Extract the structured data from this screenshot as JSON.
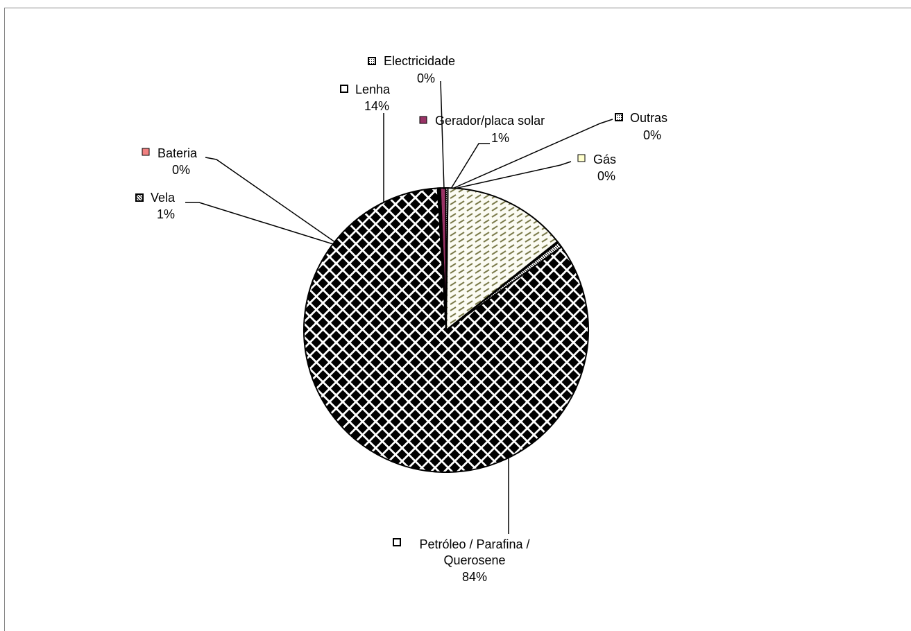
{
  "chart_data": {
    "type": "pie",
    "title": "",
    "slices": [
      {
        "name": "Petróleo / Parafina / Querosene",
        "percent_label": "84%",
        "value": 84,
        "pattern": "diamonds",
        "swatch": "#ffffff"
      },
      {
        "name": "Vela",
        "percent_label": "1%",
        "value": 0.6,
        "pattern": "diag",
        "swatch": "#ffffff"
      },
      {
        "name": "Bateria",
        "percent_label": "0%",
        "value": 0.15,
        "pattern": "solid",
        "swatch": "#f08080"
      },
      {
        "name": "Lenha",
        "percent_label": "14%",
        "value": 14.1,
        "pattern": "dashes",
        "swatch": "#ffffff"
      },
      {
        "name": "Electricidade",
        "percent_label": "0%",
        "value": 0.25,
        "pattern": "dots",
        "swatch": "#ffffff"
      },
      {
        "name": "Gerador/placa solar",
        "percent_label": "1%",
        "value": 0.6,
        "pattern": "solid",
        "swatch": "#993366"
      },
      {
        "name": "Outras",
        "percent_label": "0%",
        "value": 0.15,
        "pattern": "dots",
        "swatch": "#ffffff"
      },
      {
        "name": "Gás",
        "percent_label": "0%",
        "value": 0.15,
        "pattern": "solid",
        "swatch": "#ffffcc"
      }
    ],
    "legend": "labels beside slices with leader lines"
  }
}
